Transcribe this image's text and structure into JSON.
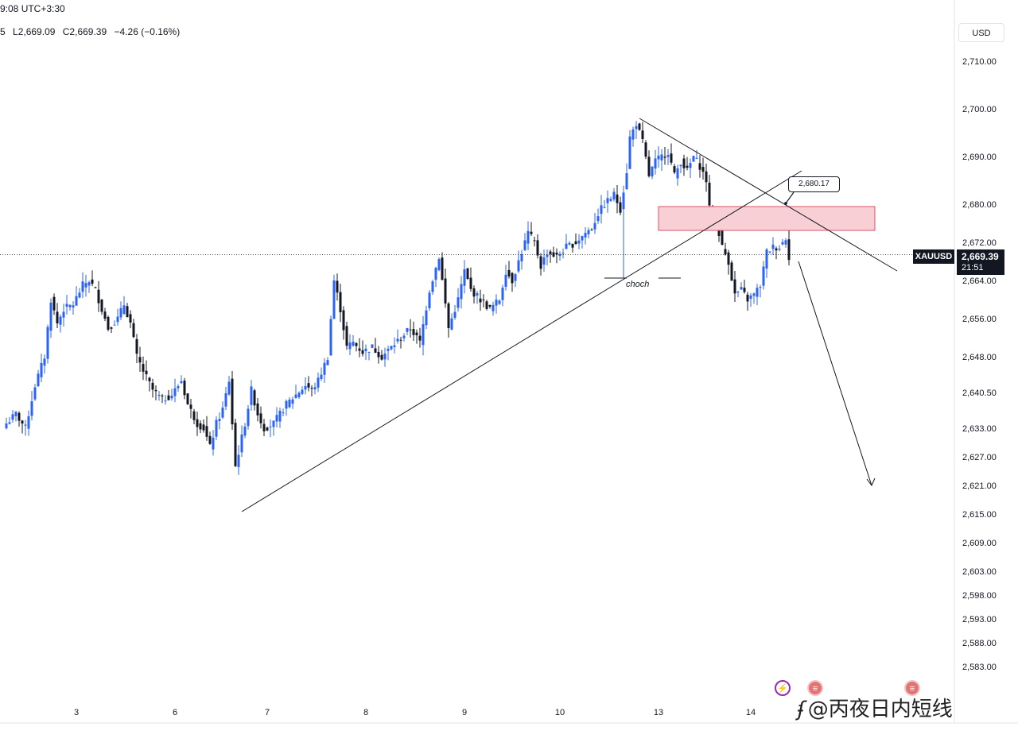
{
  "header": {
    "clock": "9:08 UTC+3:30",
    "ohlc": {
      "prefix": "5",
      "low": "L2,669.09",
      "close": "C2,669.39",
      "change": "−4.26 (−0.16%)"
    },
    "currency": "USD"
  },
  "last_price": {
    "symbol": "XAUUSD",
    "price": "2,669.39",
    "countdown": "21:51",
    "value": 2669.39
  },
  "annotations": {
    "callout_label": "2,680.17",
    "callout_value": 2680.17,
    "choch_label": "choch",
    "zone": {
      "low": 2674.5,
      "high": 2679.5
    }
  },
  "events": {
    "icons": [
      "lightning-icon",
      "us-flag-icon",
      "us-flag-icon"
    ]
  },
  "watermark": {
    "logo": "ʄ",
    "text": "@丙夜日内短线"
  },
  "colors": {
    "up": "#2962ff",
    "down": "#131722",
    "zone_fill": "#f8cfd4",
    "zone_border": "#d9566b",
    "line": "#131722"
  },
  "chart_data": {
    "type": "candlestick",
    "symbol": "XAUUSD",
    "y_ticks": [
      "2,710.00",
      "2,700.00",
      "2,690.00",
      "2,680.00",
      "2,672.00",
      "2,664.00",
      "2,656.00",
      "2,648.00",
      "2,640.50",
      "2,633.00",
      "2,627.00",
      "2,621.00",
      "2,615.00",
      "2,609.00",
      "2,603.00",
      "2,598.00",
      "2,593.00",
      "2,588.00",
      "2,583.00"
    ],
    "y_tick_values": [
      2710,
      2700,
      2690,
      2680,
      2672,
      2664,
      2656,
      2648,
      2640.5,
      2633,
      2627,
      2621,
      2615,
      2609,
      2603,
      2598,
      2593,
      2588,
      2583
    ],
    "x_ticks": [
      "3",
      "6",
      "7",
      "8",
      "9",
      "10",
      "13",
      "14"
    ],
    "x_tick_index": [
      22,
      53,
      82,
      113,
      144,
      174,
      205,
      234
    ],
    "trendlines": [
      {
        "name": "rising-trendline",
        "from": [
          74,
          2615.5
        ],
        "to": [
          250,
          2687
        ]
      },
      {
        "name": "falling-trendline",
        "from": [
          199,
          2698
        ],
        "to": [
          280,
          2666
        ]
      },
      {
        "name": "projection-arrow",
        "from": [
          249,
          2668
        ],
        "to": [
          272,
          2621
        ]
      }
    ],
    "zone_index": [
      205,
      273
    ],
    "callout_anchor": [
      245,
      2680.17
    ],
    "choch_index": [
      188,
      212
    ],
    "choch_price": 2664.5,
    "wick_spike": {
      "index": 194,
      "low": 2664.5,
      "high": 2678.5
    },
    "keypoints": [
      [
        0,
        2634
      ],
      [
        3,
        2636
      ],
      [
        6,
        2633
      ],
      [
        9,
        2642
      ],
      [
        12,
        2648
      ],
      [
        14,
        2660
      ],
      [
        16,
        2655
      ],
      [
        18,
        2658
      ],
      [
        21,
        2659
      ],
      [
        24,
        2663
      ],
      [
        26,
        2664
      ],
      [
        28,
        2662
      ],
      [
        30,
        2658
      ],
      [
        32,
        2654
      ],
      [
        35,
        2656
      ],
      [
        37,
        2659
      ],
      [
        39,
        2655
      ],
      [
        41,
        2648
      ],
      [
        43,
        2645
      ],
      [
        46,
        2641
      ],
      [
        49,
        2639
      ],
      [
        52,
        2640
      ],
      [
        55,
        2643
      ],
      [
        57,
        2638
      ],
      [
        60,
        2634
      ],
      [
        62,
        2633
      ],
      [
        64,
        2629
      ],
      [
        66,
        2634
      ],
      [
        68,
        2637
      ],
      [
        70,
        2643
      ],
      [
        72,
        2625
      ],
      [
        75,
        2634
      ],
      [
        77,
        2641
      ],
      [
        79,
        2636
      ],
      [
        81,
        2633
      ],
      [
        84,
        2634
      ],
      [
        86,
        2636
      ],
      [
        88,
        2638
      ],
      [
        91,
        2640
      ],
      [
        94,
        2642
      ],
      [
        96,
        2641
      ],
      [
        98,
        2643
      ],
      [
        101,
        2648
      ],
      [
        103,
        2664
      ],
      [
        105,
        2658
      ],
      [
        107,
        2650
      ],
      [
        109,
        2651
      ],
      [
        112,
        2649
      ],
      [
        115,
        2650
      ],
      [
        118,
        2648
      ],
      [
        121,
        2650
      ],
      [
        124,
        2652
      ],
      [
        127,
        2654
      ],
      [
        130,
        2651
      ],
      [
        133,
        2662
      ],
      [
        136,
        2669
      ],
      [
        139,
        2654
      ],
      [
        142,
        2660
      ],
      [
        144,
        2666
      ],
      [
        146,
        2662
      ],
      [
        149,
        2660
      ],
      [
        152,
        2658
      ],
      [
        155,
        2660
      ],
      [
        157,
        2666
      ],
      [
        159,
        2664
      ],
      [
        162,
        2670
      ],
      [
        164,
        2674
      ],
      [
        166,
        2672
      ],
      [
        168,
        2667
      ],
      [
        170,
        2670
      ],
      [
        173,
        2669
      ],
      [
        176,
        2671
      ],
      [
        179,
        2672
      ],
      [
        182,
        2674
      ],
      [
        184,
        2675
      ],
      [
        186,
        2678
      ],
      [
        188,
        2680
      ],
      [
        191,
        2682
      ],
      [
        193,
        2679
      ],
      [
        195,
        2687
      ],
      [
        196,
        2694
      ],
      [
        198,
        2697
      ],
      [
        200,
        2693
      ],
      [
        202,
        2686
      ],
      [
        204,
        2689
      ],
      [
        206,
        2690
      ],
      [
        208,
        2691
      ],
      [
        210,
        2686
      ],
      [
        212,
        2689
      ],
      [
        214,
        2687
      ],
      [
        216,
        2690
      ],
      [
        218,
        2688
      ],
      [
        220,
        2685
      ],
      [
        221,
        2679
      ],
      [
        223,
        2677
      ],
      [
        225,
        2671
      ],
      [
        227,
        2668
      ],
      [
        229,
        2661
      ],
      [
        231,
        2662
      ],
      [
        233,
        2660
      ],
      [
        235,
        2661
      ],
      [
        237,
        2663
      ],
      [
        239,
        2670
      ],
      [
        241,
        2671
      ],
      [
        243,
        2671
      ],
      [
        245,
        2673
      ],
      [
        246,
        2669
      ]
    ]
  }
}
